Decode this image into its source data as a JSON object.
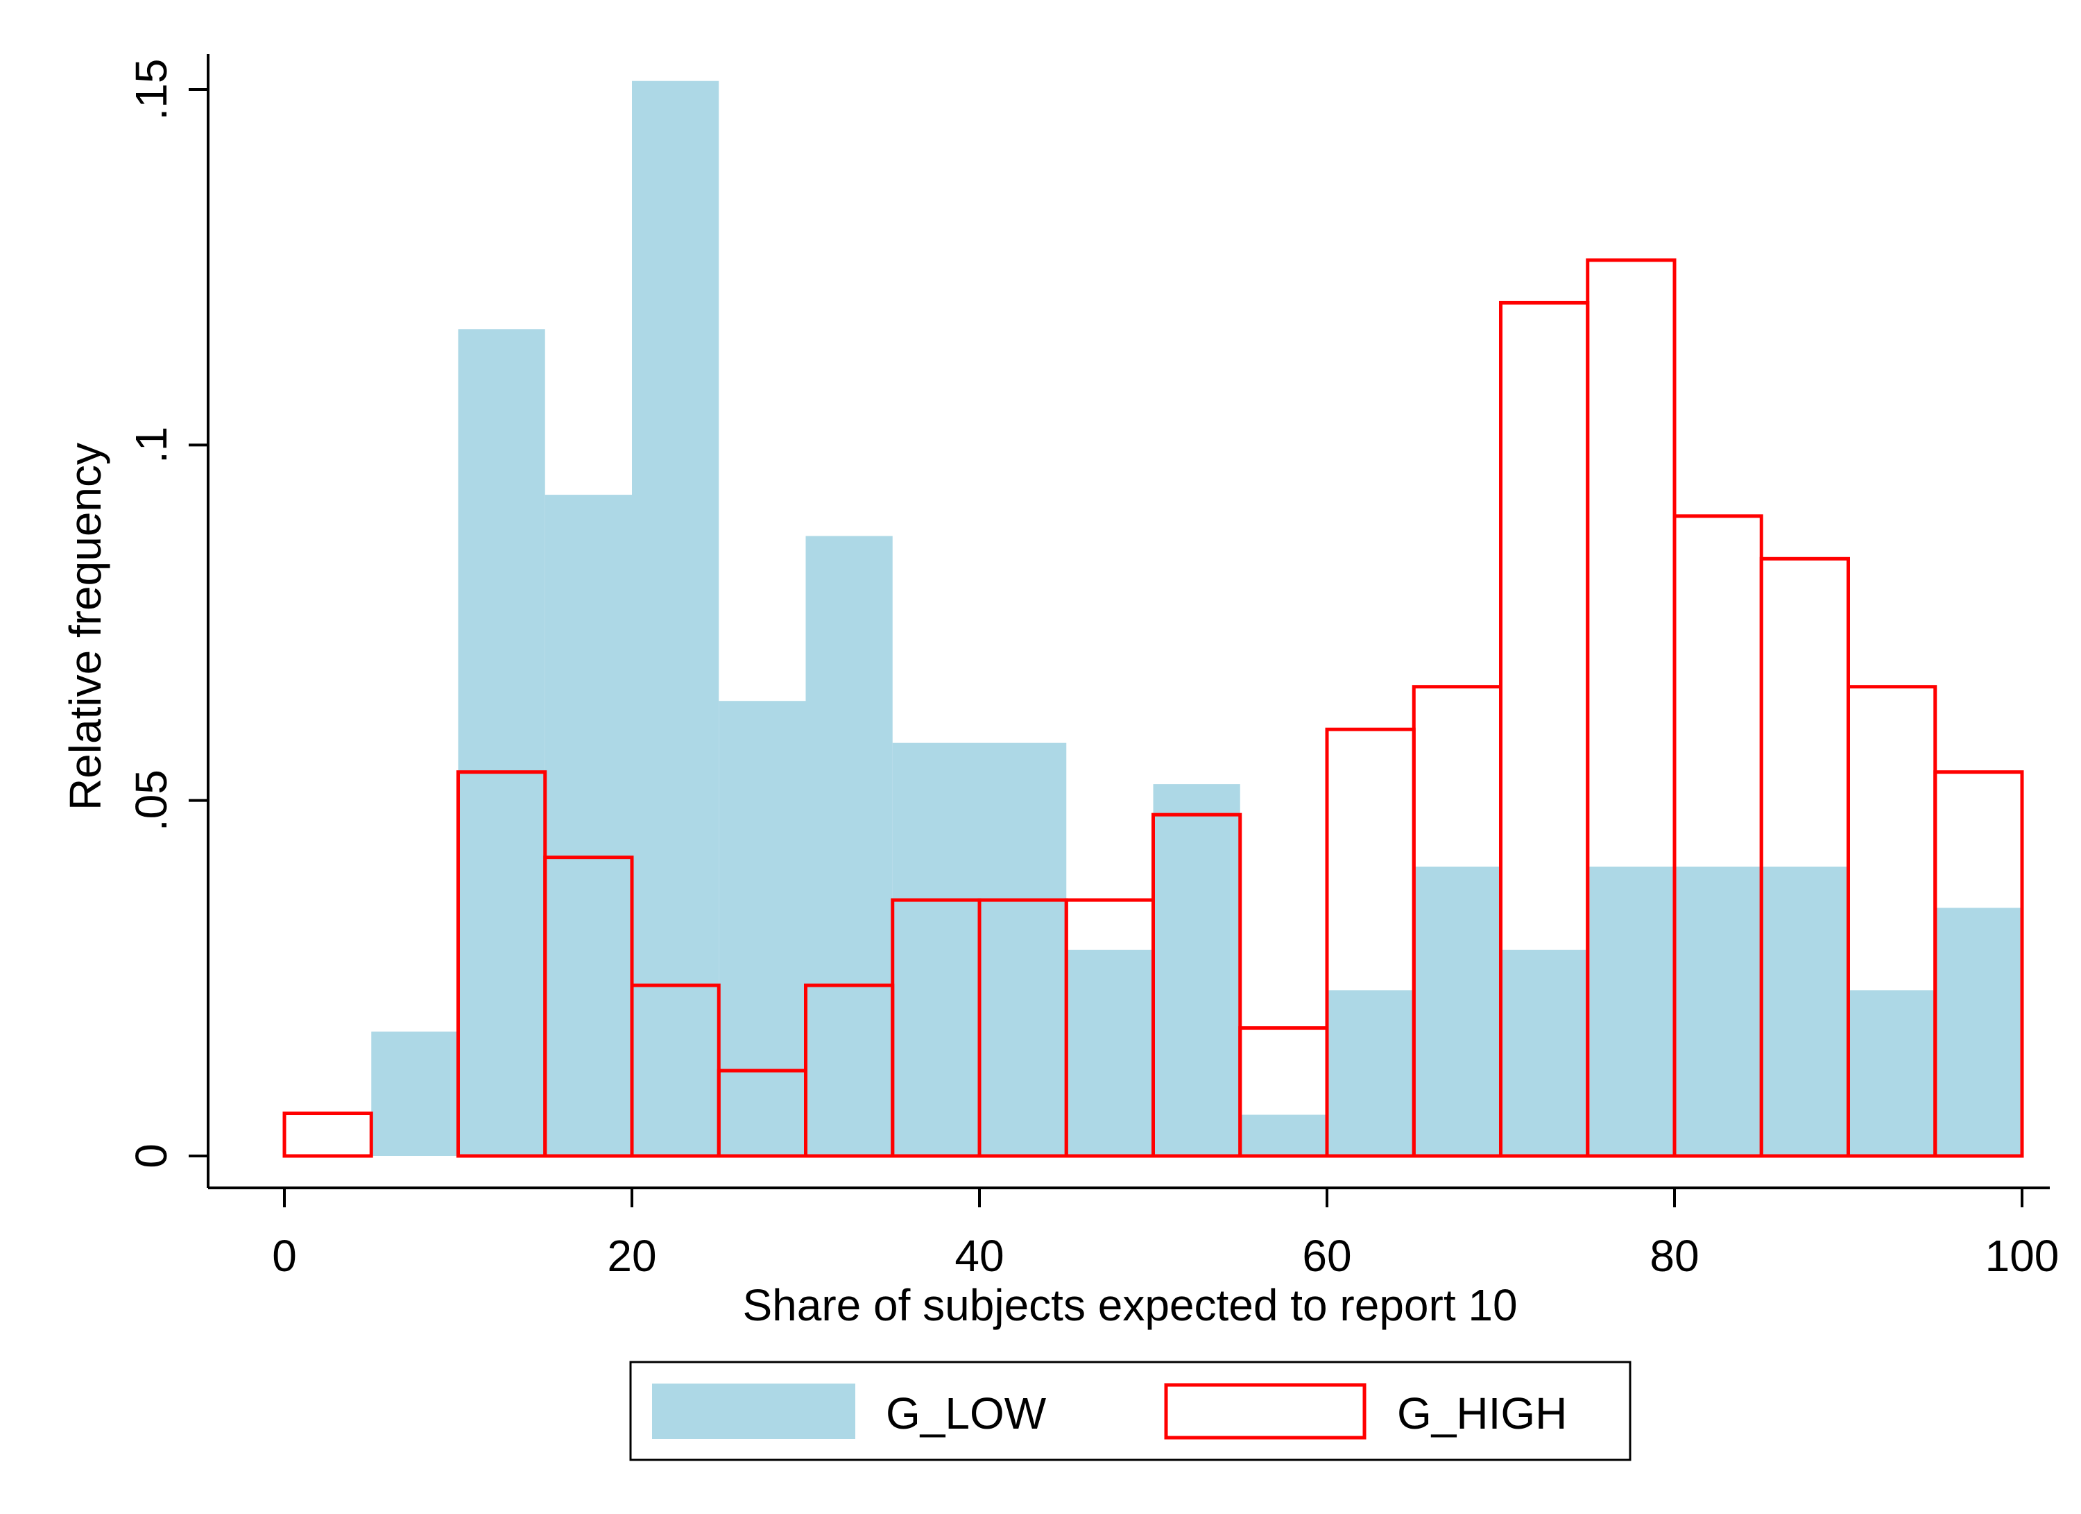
{
  "chart_data": {
    "type": "bar",
    "subtype": "overlaid-histogram",
    "title": "",
    "xlabel": "Share of subjects expected to report 10",
    "ylabel": "Relative frequency",
    "xlim": [
      0,
      100
    ],
    "ylim": [
      0,
      0.15
    ],
    "xticks": [
      {
        "value": 0,
        "label": "0"
      },
      {
        "value": 20,
        "label": "20"
      },
      {
        "value": 40,
        "label": "40"
      },
      {
        "value": 60,
        "label": "60"
      },
      {
        "value": 80,
        "label": "80"
      },
      {
        "value": 100,
        "label": "100"
      }
    ],
    "yticks": [
      {
        "value": 0,
        "label": "0"
      },
      {
        "value": 0.05,
        "label": ".05"
      },
      {
        "value": 0.1,
        "label": ".1"
      },
      {
        "value": 0.15,
        "label": ".15"
      }
    ],
    "bin_width": 5,
    "bin_starts": [
      0,
      5,
      10,
      15,
      20,
      25,
      30,
      35,
      40,
      45,
      50,
      55,
      60,
      65,
      70,
      75,
      80,
      85,
      90,
      95
    ],
    "grid": false,
    "legend_position": "bottom-center",
    "series": [
      {
        "name": "G_LOW",
        "style": "filled",
        "color": "#add8e6",
        "values": [
          0,
          0.0175,
          0.1163,
          0.093,
          0.1512,
          0.064,
          0.0872,
          0.0581,
          0.0581,
          0.029,
          0.0523,
          0.0058,
          0.0233,
          0.0407,
          0.029,
          0.0407,
          0.0407,
          0.0407,
          0.0233,
          0.0349
        ]
      },
      {
        "name": "G_HIGH",
        "style": "outline",
        "color": "#ff0000",
        "values": [
          0.006,
          0,
          0.054,
          0.042,
          0.024,
          0.012,
          0.024,
          0.036,
          0.036,
          0.036,
          0.048,
          0.018,
          0.06,
          0.066,
          0.12,
          0.126,
          0.09,
          0.084,
          0.066,
          0.054
        ]
      }
    ]
  }
}
